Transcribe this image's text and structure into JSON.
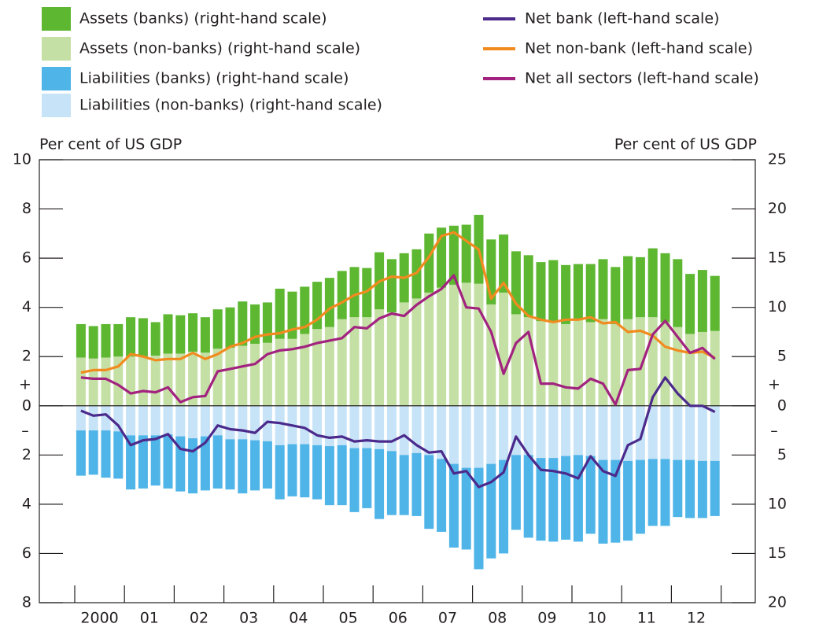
{
  "chart_data": {
    "type": "combo",
    "y_label": "Per cent of US GDP",
    "y2_label": "Per cent of US GDP",
    "sign_labels": {
      "plus": "+",
      "minus": "–"
    },
    "categories": [
      "2000",
      null,
      null,
      null,
      "01",
      null,
      null,
      null,
      "02",
      null,
      null,
      null,
      "03",
      null,
      null,
      null,
      "04",
      null,
      null,
      null,
      "05",
      null,
      null,
      null,
      "06",
      null,
      null,
      null,
      "07",
      null,
      null,
      null,
      "08",
      null,
      null,
      null,
      "09",
      null,
      null,
      null,
      "10",
      null,
      null,
      null,
      "11",
      null,
      null,
      null,
      "12",
      null,
      null,
      null
    ],
    "ylim": [
      -8,
      10
    ],
    "yticks": [
      10,
      8,
      6,
      4,
      2,
      0,
      {
        "value": -2,
        "label": "2"
      },
      {
        "value": -4,
        "label": "4"
      },
      {
        "value": -6,
        "label": "6"
      },
      {
        "value": -8,
        "label": "8"
      }
    ],
    "y2lim": [
      -20,
      25
    ],
    "y2ticks": [
      25,
      20,
      15,
      10,
      5,
      0,
      {
        "value": -5,
        "label": "5"
      },
      {
        "value": -10,
        "label": "10"
      },
      {
        "value": -15,
        "label": "15"
      },
      {
        "value": -20,
        "label": "20"
      }
    ],
    "series": [
      {
        "name": "Assets (banks) (right-hand scale)",
        "type": "bar",
        "axis": "y2",
        "color": "#5db731",
        "values": [
          3.4,
          3.3,
          3.4,
          3.3,
          4.0,
          3.9,
          3.4,
          4.0,
          3.9,
          3.9,
          3.6,
          4.0,
          4.1,
          4.5,
          4.0,
          4.1,
          5.1,
          4.8,
          4.8,
          4.8,
          5.0,
          4.9,
          5.1,
          5.0,
          5.8,
          5.4,
          5.0,
          5.0,
          6.0,
          6.1,
          6.0,
          5.9,
          7.0,
          6.6,
          5.9,
          6.4,
          6.3,
          6.0,
          6.3,
          6.0,
          5.6,
          5.9,
          6.1,
          5.8,
          6.4,
          6.1,
          7.0,
          7.0,
          6.9,
          6.1,
          6.3,
          5.6
        ]
      },
      {
        "name": "Assets (non-banks) (right-hand scale)",
        "type": "bar",
        "axis": "y2",
        "color": "#c5e0a5",
        "values": [
          4.9,
          4.8,
          4.9,
          5.0,
          5.0,
          5.0,
          5.1,
          5.3,
          5.3,
          5.5,
          5.4,
          5.8,
          5.9,
          6.1,
          6.3,
          6.4,
          6.8,
          6.8,
          7.3,
          7.8,
          8.0,
          8.8,
          9.0,
          9.0,
          9.8,
          9.5,
          10.5,
          10.9,
          11.5,
          12.0,
          12.3,
          12.5,
          12.4,
          10.3,
          11.5,
          9.3,
          9.0,
          8.6,
          8.5,
          8.3,
          8.8,
          8.5,
          8.8,
          8.3,
          8.8,
          9.0,
          9.0,
          8.5,
          8.0,
          7.3,
          7.5,
          7.6
        ]
      },
      {
        "name": "Liabilities (banks) (right-hand scale)",
        "type": "bar",
        "axis": "y2",
        "color": "#4fb4e8",
        "values": [
          -4.6,
          -4.5,
          -4.8,
          -4.8,
          -5.5,
          -5.4,
          -5.1,
          -5.5,
          -5.6,
          -5.6,
          -5.5,
          -5.4,
          -5.1,
          -5.5,
          -5.1,
          -4.8,
          -5.5,
          -5.3,
          -5.4,
          -5.5,
          -6.0,
          -6.1,
          -6.5,
          -6.1,
          -7.1,
          -6.5,
          -6.1,
          -6.4,
          -7.5,
          -7.4,
          -8.5,
          -8.3,
          -10.3,
          -9.6,
          -9.5,
          -7.6,
          -8.4,
          -8.4,
          -8.5,
          -8.5,
          -8.8,
          -7.9,
          -8.5,
          -8.4,
          -8.1,
          -7.5,
          -6.8,
          -6.8,
          -5.8,
          -5.9,
          -5.8,
          -5.6
        ]
      },
      {
        "name": "Liabilities (non-banks) (right-hand scale)",
        "type": "bar",
        "axis": "y2",
        "color": "#c7e3f7",
        "values": [
          -2.5,
          -2.5,
          -2.5,
          -2.6,
          -3.0,
          -3.0,
          -3.0,
          -2.9,
          -3.1,
          -3.3,
          -3.1,
          -3.0,
          -3.4,
          -3.4,
          -3.5,
          -3.6,
          -4.0,
          -3.9,
          -3.9,
          -4.0,
          -4.1,
          -4.0,
          -4.3,
          -4.3,
          -4.4,
          -4.6,
          -5.0,
          -4.8,
          -5.0,
          -5.4,
          -5.9,
          -6.3,
          -6.3,
          -5.9,
          -5.5,
          -5.0,
          -5.0,
          -5.3,
          -5.3,
          -5.1,
          -5.0,
          -5.1,
          -5.5,
          -5.5,
          -5.6,
          -5.5,
          -5.4,
          -5.4,
          -5.5,
          -5.5,
          -5.6,
          -5.6
        ]
      },
      {
        "name": "Net bank (left-hand scale)",
        "type": "line",
        "color": "#4b2a8c",
        "values": [
          -0.2,
          -0.4,
          -0.35,
          -0.8,
          -1.6,
          -1.4,
          -1.35,
          -1.15,
          -1.75,
          -1.85,
          -1.5,
          -0.8,
          -0.95,
          -1.0,
          -1.1,
          -0.65,
          -0.7,
          -0.8,
          -0.9,
          -1.2,
          -1.3,
          -1.25,
          -1.45,
          -1.4,
          -1.45,
          -1.45,
          -1.2,
          -1.6,
          -1.9,
          -1.85,
          -2.75,
          -2.65,
          -3.3,
          -3.1,
          -2.7,
          -1.25,
          -2.0,
          -2.6,
          -2.65,
          -2.75,
          -2.95,
          -2.05,
          -2.65,
          -2.85,
          -1.6,
          -1.35,
          0.35,
          1.15,
          0.5,
          0.0,
          0.0,
          -0.25
        ]
      },
      {
        "name": "Net non-bank (left-hand scale)",
        "type": "line",
        "color": "#f28b1f",
        "values": [
          1.35,
          1.45,
          1.45,
          1.6,
          2.1,
          2.0,
          1.85,
          1.9,
          1.9,
          2.15,
          1.9,
          2.1,
          2.4,
          2.55,
          2.8,
          2.9,
          2.95,
          3.1,
          3.2,
          3.5,
          3.95,
          4.2,
          4.5,
          4.65,
          5.05,
          5.25,
          5.2,
          5.4,
          6.05,
          6.9,
          7.05,
          6.7,
          6.35,
          4.35,
          5.0,
          4.15,
          3.65,
          3.5,
          3.4,
          3.5,
          3.5,
          3.6,
          3.35,
          3.4,
          3.0,
          3.05,
          2.85,
          2.4,
          2.25,
          2.15,
          2.2,
          1.95
        ]
      },
      {
        "name": "Net all sectors (left-hand scale)",
        "type": "line",
        "color": "#a2237f",
        "values": [
          1.15,
          1.1,
          1.1,
          0.85,
          0.5,
          0.6,
          0.55,
          0.75,
          0.15,
          0.35,
          0.4,
          1.4,
          1.5,
          1.6,
          1.7,
          2.1,
          2.25,
          2.3,
          2.4,
          2.55,
          2.65,
          2.75,
          3.2,
          3.15,
          3.55,
          3.75,
          3.65,
          4.1,
          4.45,
          4.75,
          5.3,
          4.0,
          3.95,
          3.0,
          1.3,
          2.55,
          3.0,
          0.9,
          0.9,
          0.75,
          0.7,
          1.1,
          0.9,
          0.05,
          1.45,
          1.5,
          2.9,
          3.45,
          2.8,
          2.15,
          2.35,
          1.9
        ]
      }
    ]
  }
}
